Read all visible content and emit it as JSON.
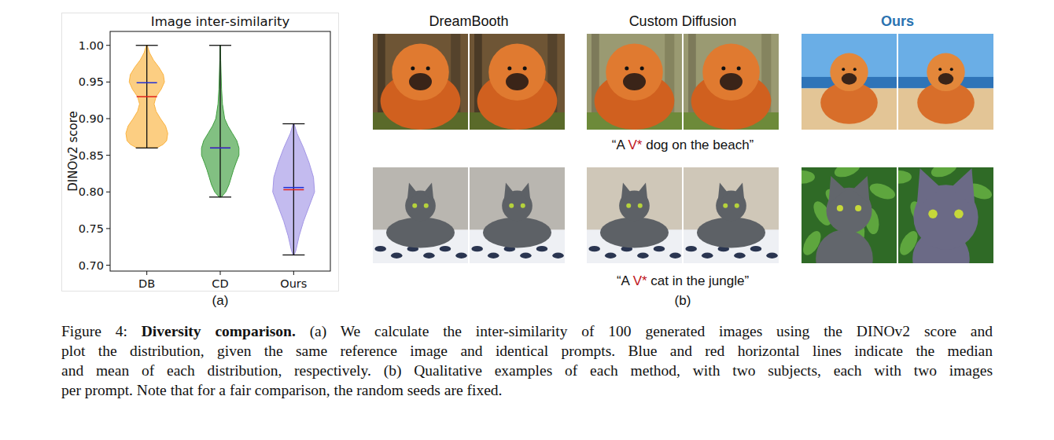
{
  "chart_data": {
    "type": "violin",
    "title": "Image inter-similarity",
    "y_label": "DINOv2 score",
    "categories": [
      "DB",
      "CD",
      "Ours"
    ],
    "colors": [
      "#fbb33f",
      "#3f9e3f",
      "#a396e6"
    ],
    "min": [
      0.86,
      0.793,
      0.714
    ],
    "max": [
      1.0,
      1.0,
      0.893
    ],
    "median": [
      0.949,
      0.86,
      0.806
    ],
    "mean": [
      0.93,
      0.86,
      0.803
    ],
    "density": [
      {
        "y": [
          0.86,
          0.865,
          0.87,
          0.88,
          0.89,
          0.9,
          0.91,
          0.92,
          0.93,
          0.94,
          0.95,
          0.96,
          0.97,
          0.98,
          0.99,
          1.0
        ],
        "width": [
          0.45,
          0.75,
          0.9,
          0.95,
          0.85,
          0.62,
          0.42,
          0.33,
          0.42,
          0.65,
          0.8,
          0.75,
          0.55,
          0.3,
          0.12,
          0.02
        ]
      },
      {
        "y": [
          0.793,
          0.8,
          0.81,
          0.82,
          0.83,
          0.84,
          0.85,
          0.86,
          0.87,
          0.88,
          0.89,
          0.9,
          0.92,
          0.94,
          0.96,
          0.98,
          1.0
        ],
        "width": [
          0.05,
          0.25,
          0.4,
          0.5,
          0.6,
          0.72,
          0.85,
          0.85,
          0.75,
          0.55,
          0.35,
          0.2,
          0.1,
          0.06,
          0.04,
          0.02,
          0.01
        ]
      },
      {
        "y": [
          0.714,
          0.72,
          0.74,
          0.76,
          0.78,
          0.8,
          0.82,
          0.84,
          0.86,
          0.87,
          0.88,
          0.893
        ],
        "width": [
          0.02,
          0.1,
          0.25,
          0.45,
          0.7,
          0.95,
          0.9,
          0.7,
          0.45,
          0.3,
          0.15,
          0.02
        ]
      }
    ],
    "ylim": [
      0.692,
      1.019
    ],
    "yticks": [
      {
        "value": 0.7,
        "label": "0.70"
      },
      0.75,
      {
        "value": 0.8,
        "label": "0.80"
      },
      0.85,
      {
        "value": 0.9,
        "label": "0.90"
      },
      0.95,
      {
        "value": 1.0,
        "label": "1.00"
      }
    ]
  },
  "panel_labels": [
    "(a)",
    "(b)"
  ],
  "comparison": {
    "methods": [
      {
        "name": "DreamBooth",
        "highlight": false
      },
      {
        "name": "Custom Diffusion",
        "highlight": false
      },
      {
        "name": "Ours",
        "highlight": true
      }
    ],
    "prompts": [
      {
        "before": "“A ",
        "token": "V*",
        "after": " dog on the beach”"
      },
      {
        "before": "“A ",
        "token": "V*",
        "after": " cat in the jungle”"
      }
    ]
  },
  "caption": {
    "label": "Figure 4:",
    "heading": "Diversity comparison.",
    "lines": [
      "(a) We calculate the inter-similarity of 100 generated images using the DINOv2 score and",
      "plot the distribution, given the same reference image and identical prompts. Blue and red horizontal lines indicate the median",
      "and mean of each distribution, respectively. (b) Qualitative examples of each method, with two subjects, each with two images",
      "per prompt. Note that for a fair comparison, the random seeds are fixed."
    ]
  }
}
